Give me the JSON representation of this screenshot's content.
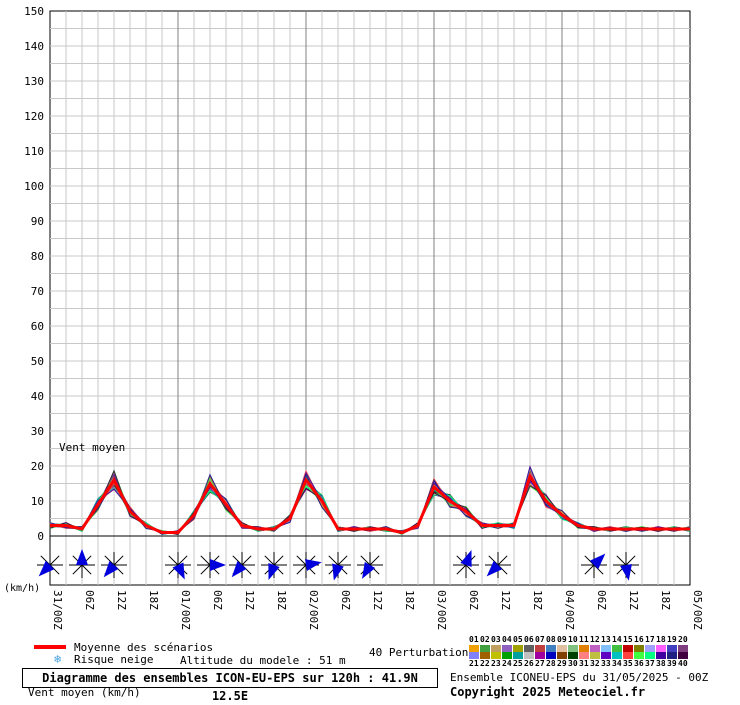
{
  "chart_data": {
    "type": "line",
    "ylim": [
      0,
      150
    ],
    "yticks": [
      0,
      10,
      20,
      30,
      40,
      50,
      60,
      70,
      80,
      90,
      100,
      110,
      120,
      130,
      140,
      150
    ],
    "x_hours": [
      0,
      3,
      6,
      9,
      12,
      15,
      18,
      21,
      24,
      27,
      30,
      33,
      36,
      39,
      42,
      45,
      48,
      51,
      54,
      57,
      60,
      63,
      66,
      69,
      72,
      75,
      78,
      81,
      84,
      87,
      90,
      93,
      96,
      99,
      102,
      105,
      108,
      111,
      114,
      117,
      120
    ],
    "xtick_labels": [
      "31/00Z",
      "06Z",
      "12Z",
      "18Z",
      "01/00Z",
      "06Z",
      "12Z",
      "18Z",
      "02/00Z",
      "06Z",
      "12Z",
      "18Z",
      "03/00Z",
      "06Z",
      "12Z",
      "18Z",
      "04/00Z",
      "06Z",
      "12Z",
      "18Z",
      "05/00Z"
    ],
    "annotation": "Vent moyen",
    "unit_label": "(km/h)",
    "series": [
      {
        "name": "Moyenne des scénarios",
        "color": "#ff0000",
        "values": [
          3,
          3,
          2,
          9,
          16,
          7,
          3,
          1,
          1,
          6,
          15,
          9,
          3,
          2,
          2,
          5,
          16,
          10,
          2,
          2,
          2,
          2,
          1,
          3,
          14,
          10,
          7,
          3,
          3,
          3,
          17,
          10,
          6,
          3,
          2,
          2,
          2,
          2,
          2,
          2,
          2
        ]
      }
    ],
    "wind_roses": [
      {
        "hour": 0,
        "dir": 225
      },
      {
        "hour": 6,
        "dir": 0
      },
      {
        "hour": 12,
        "dir": 220
      },
      {
        "hour": 24,
        "dir": 155
      },
      {
        "hour": 30,
        "dir": 90
      },
      {
        "hour": 36,
        "dir": 220
      },
      {
        "hour": 42,
        "dir": 200
      },
      {
        "hour": 48,
        "dir": 80
      },
      {
        "hour": 54,
        "dir": 195
      },
      {
        "hour": 60,
        "dir": 210
      },
      {
        "hour": 78,
        "dir": 20
      },
      {
        "hour": 84,
        "dir": 225
      },
      {
        "hour": 102,
        "dir": 45
      },
      {
        "hour": 108,
        "dir": 170
      }
    ]
  },
  "legend": {
    "mean_label": "Moyenne des scénarios",
    "snow_label": "Risque neige",
    "altitude_label": "Altitude du modele : 51 m",
    "perturbations_label": "40 Perturbations"
  },
  "footer": {
    "title": "Diagramme des ensembles ICON-EU-EPS sur 120h : 41.9N 12.5E",
    "unit": "Vent moyen (km/h)",
    "ensemble_info": "Ensemble ICONEU-EPS du 31/05/2025 - 00Z",
    "copyright": "Copyright 2025 Meteociel.fr"
  },
  "member_numbers_top": [
    "01",
    "02",
    "03",
    "04",
    "05",
    "06",
    "07",
    "08",
    "09",
    "10",
    "11",
    "12",
    "13",
    "14",
    "15",
    "16",
    "17",
    "18",
    "19",
    "20"
  ],
  "member_numbers_bottom": [
    "21",
    "22",
    "23",
    "24",
    "25",
    "26",
    "27",
    "28",
    "29",
    "30",
    "31",
    "32",
    "33",
    "34",
    "35",
    "36",
    "37",
    "38",
    "39",
    "40"
  ],
  "member_colors": [
    "#f0a000",
    "#40a040",
    "#c0a060",
    "#9060c0",
    "#a0a000",
    "#606060",
    "#c04040",
    "#4080c0",
    "#e0c0a0",
    "#80c080",
    "#e08000",
    "#c060c0",
    "#80c0ff",
    "#40c040",
    "#c00000",
    "#808000",
    "#a0a0ff",
    "#ff60ff",
    "#4040c0",
    "#804080",
    "#8080ff",
    "#a06000",
    "#c0c000",
    "#00a000",
    "#00a0a0",
    "#c0c0c0",
    "#a000a0",
    "#0000c0",
    "#804000",
    "#004000",
    "#ff8080",
    "#c0c040",
    "#6000c0",
    "#00c0c0",
    "#ff4040",
    "#40ff40",
    "#00ff80",
    "#4000a0",
    "#202080",
    "#400040"
  ]
}
